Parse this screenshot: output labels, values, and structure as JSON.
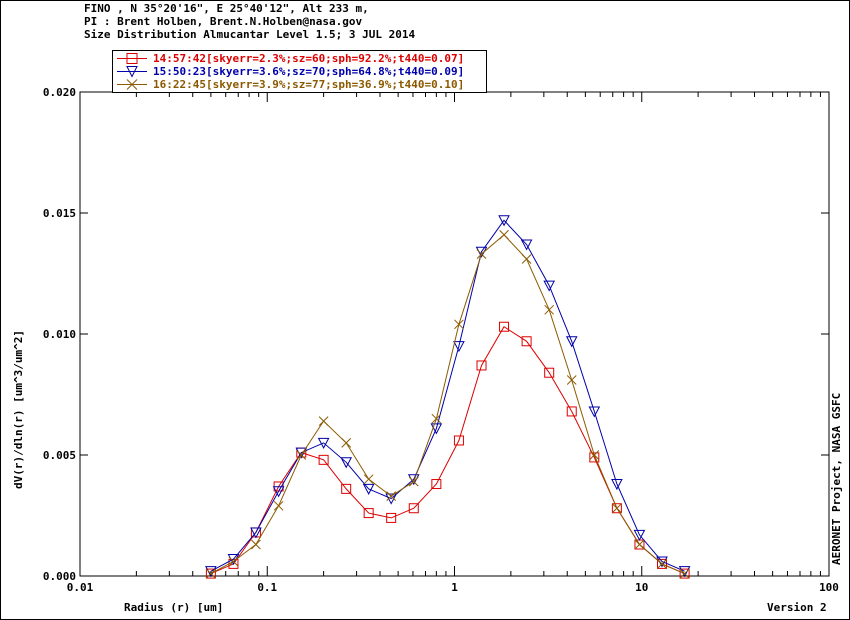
{
  "header": {
    "line1": "FINO , N 35°20'16\", E 25°40'12\", Alt 233 m,",
    "line2": "PI : Brent Holben, Brent.N.Holben@nasa.gov",
    "line3": "Size Distribution Almucantar Level 1.5; 3 JUL 2014"
  },
  "credit": "AERONET Project, NASA GSFC",
  "version": "Version 2",
  "chart_data": {
    "type": "line",
    "title": "Size Distribution Almucantar Level 1.5; 3 JUL 2014",
    "xlabel": "Radius (r) [um]",
    "ylabel": "dV(r)/dln(r) [um^3/um^2]",
    "x_scale": "log",
    "xlim": [
      0.01,
      100
    ],
    "ylim": [
      0,
      0.02
    ],
    "x_ticks": [
      "0.01",
      "0.1",
      "1",
      "10",
      "100"
    ],
    "y_ticks": [
      "0.000",
      "0.005",
      "0.010",
      "0.015",
      "0.020"
    ],
    "x": [
      0.05,
      0.066,
      0.087,
      0.115,
      0.152,
      0.2,
      0.264,
      0.348,
      0.459,
      0.606,
      0.8,
      1.056,
      1.394,
      1.839,
      2.427,
      3.204,
      4.228,
      5.581,
      7.366,
      9.722,
      12.83,
      16.94
    ],
    "series": [
      {
        "name": "14:57:42[skyerr=2.3%;sz=60;sph=92.2%;t440=0.07]",
        "color": "#dd0000",
        "marker": "square",
        "values": [
          0.0001,
          0.0005,
          0.0018,
          0.0037,
          0.0051,
          0.0048,
          0.0036,
          0.0026,
          0.0024,
          0.0028,
          0.0038,
          0.0056,
          0.0087,
          0.0103,
          0.0097,
          0.0084,
          0.0068,
          0.0049,
          0.0028,
          0.0013,
          0.0005,
          0.0001
        ]
      },
      {
        "name": "15:50:23[skyerr=3.6%;sz=70;sph=64.8%;t440=0.09]",
        "color": "#0000aa",
        "marker": "triangle-down",
        "values": [
          0.0002,
          0.0007,
          0.0018,
          0.0035,
          0.0051,
          0.0055,
          0.0047,
          0.0036,
          0.0032,
          0.004,
          0.0061,
          0.0095,
          0.0134,
          0.0147,
          0.0137,
          0.012,
          0.0097,
          0.0068,
          0.0038,
          0.0017,
          0.0006,
          0.0002
        ]
      },
      {
        "name": "16:22:45[skyerr=3.9%;sz=77;sph=36.9%;t440=0.10]",
        "color": "#8b5a00",
        "marker": "x",
        "values": [
          0.0001,
          0.0006,
          0.0013,
          0.0029,
          0.005,
          0.0064,
          0.0055,
          0.004,
          0.0033,
          0.0039,
          0.0065,
          0.0104,
          0.0133,
          0.0141,
          0.0131,
          0.011,
          0.0081,
          0.005,
          0.0028,
          0.0013,
          0.0005,
          0.0001
        ]
      }
    ]
  }
}
